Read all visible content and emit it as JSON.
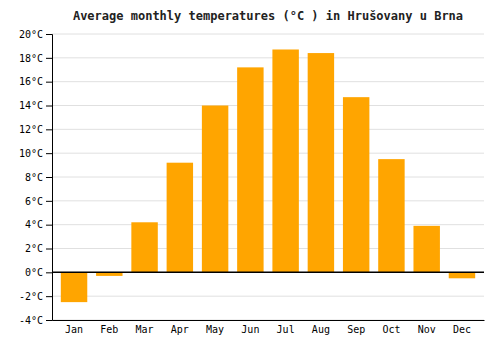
{
  "chart_data": {
    "type": "bar",
    "title": "Average monthly temperatures (°C ) in Hrušovany u Brna",
    "categories": [
      "Jan",
      "Feb",
      "Mar",
      "Apr",
      "May",
      "Jun",
      "Jul",
      "Aug",
      "Sep",
      "Oct",
      "Nov",
      "Dec"
    ],
    "values": [
      -2.5,
      -0.3,
      4.2,
      9.2,
      14.0,
      17.2,
      18.7,
      18.4,
      14.7,
      9.5,
      3.9,
      -0.5
    ],
    "color": "#FFA500",
    "ylim": [
      -4,
      20
    ],
    "yticks": [
      {
        "value": -4,
        "label": "-4°C"
      },
      {
        "value": -2,
        "label": "-2°C"
      },
      {
        "value": 0,
        "label": "0°C"
      },
      {
        "value": 2,
        "label": "2°C"
      },
      {
        "value": 4,
        "label": "4°C"
      },
      {
        "value": 6,
        "label": "6°C"
      },
      {
        "value": 8,
        "label": "8°C"
      },
      {
        "value": 10,
        "label": "10°C"
      },
      {
        "value": 12,
        "label": "12°C"
      },
      {
        "value": 14,
        "label": "14°C"
      },
      {
        "value": 16,
        "label": "16°C"
      },
      {
        "value": 18,
        "label": "18°C"
      },
      {
        "value": 20,
        "label": "20°C"
      }
    ],
    "grid": true
  }
}
